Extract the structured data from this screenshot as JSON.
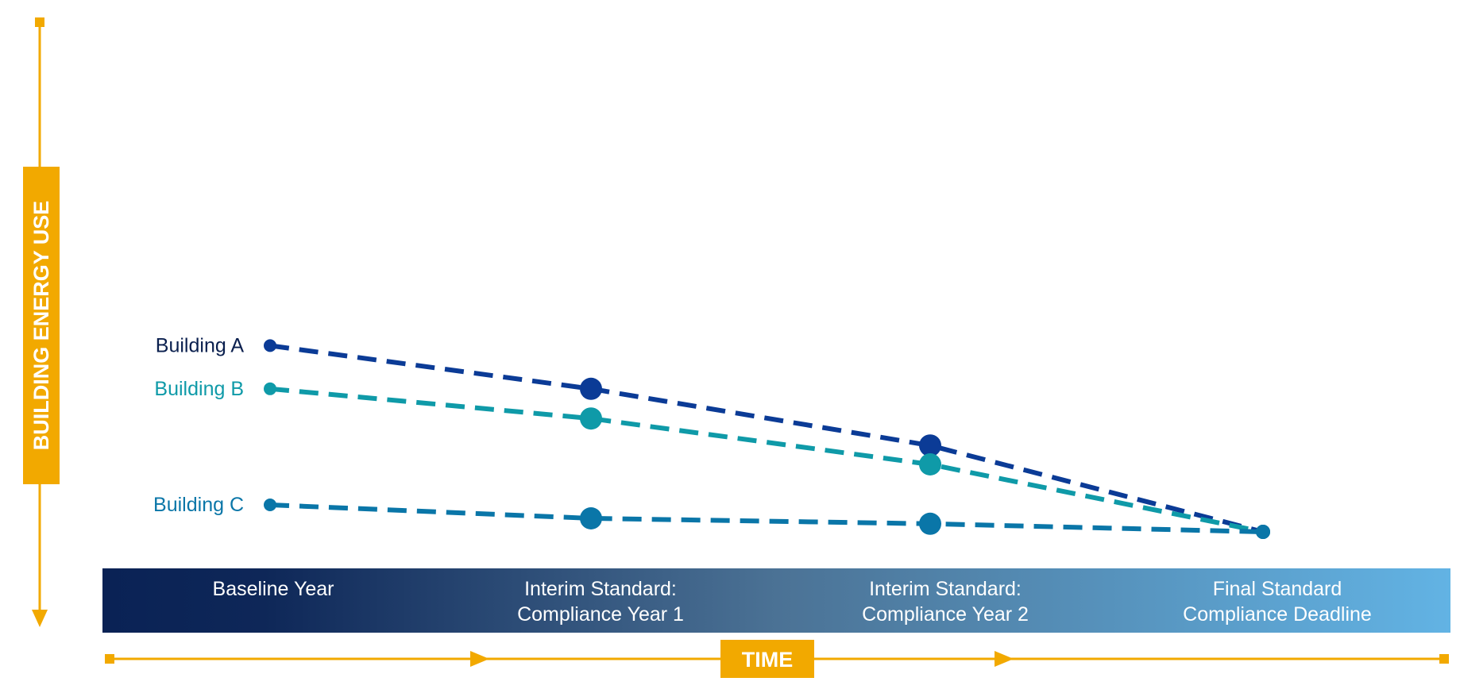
{
  "axes": {
    "y_label": "BUILDING ENERGY USE",
    "x_label": "TIME",
    "accent_color": "#f2a900"
  },
  "timeline_band": {
    "gradient_from": "#0a2255",
    "gradient_to": "#62b3e4",
    "stages": [
      {
        "line1": "Baseline Year",
        "line2": ""
      },
      {
        "line1": "Interim Standard:",
        "line2": "Compliance Year 1"
      },
      {
        "line1": "Interim Standard:",
        "line2": "Compliance Year 2"
      },
      {
        "line1": "Final Standard",
        "line2": "Compliance Deadline"
      }
    ]
  },
  "buildings": [
    {
      "name": "Building A",
      "color": "#0b3b96",
      "levels": [
        0.69,
        0.53,
        0.32,
        0.0
      ]
    },
    {
      "name": "Building B",
      "color": "#0f9aa8",
      "levels": [
        0.53,
        0.42,
        0.25,
        0.0
      ]
    },
    {
      "name": "Building C",
      "color": "#0a76a8",
      "levels": [
        0.1,
        0.05,
        0.03,
        0.0
      ]
    }
  ]
}
